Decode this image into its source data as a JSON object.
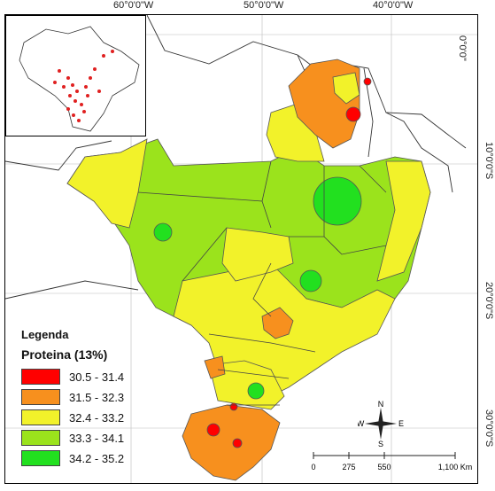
{
  "coordinates": {
    "top": [
      "60°0'0\"W",
      "50°0'0\"W",
      "40°0'0\"W"
    ],
    "right": [
      "0°0'0\"",
      "10°0'0\"S",
      "20°0'0\"S",
      "30°0'0\"S"
    ]
  },
  "legend": {
    "title": "Legenda",
    "subtitle": "Proteina (13%)",
    "items": [
      {
        "label": "30.5 - 31.4",
        "color": "#ff0000"
      },
      {
        "label": "31.5 - 32.3",
        "color": "#f7901e"
      },
      {
        "label": "32.4 - 33.2",
        "color": "#f2f22a"
      },
      {
        "label": "33.3 - 34.1",
        "color": "#9be31c"
      },
      {
        "label": "34.2 - 35.2",
        "color": "#22e01f"
      }
    ]
  },
  "compass": {
    "n": "N",
    "s": "S",
    "e": "E",
    "w": "W"
  },
  "scale": {
    "ticks": [
      "0",
      "275",
      "550",
      "1,100 Km"
    ]
  }
}
